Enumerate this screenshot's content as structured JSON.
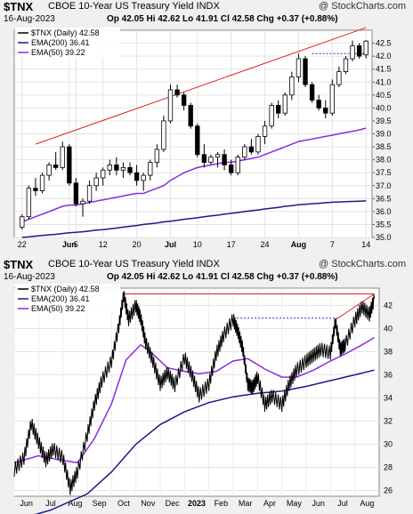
{
  "charts": [
    {
      "symbol": "$TNX",
      "name": "CBOE 10-Year US Treasury Yield",
      "exchange": "INDX",
      "watermark": "@ StockCharts.com",
      "date": "16-Aug-2023",
      "quote": "Op 42.05  Hi 42.62  Lo 41.91  Cl 42.58  Chg +0.37 (+0.88%)",
      "legend": [
        "$TNX (Daily) 42.58",
        "EMA(200) 36.41",
        "EMA(50) 39.22"
      ]
    },
    {
      "symbol": "$TNX",
      "name": "CBOE 10-Year US Treasury Yield",
      "exchange": "INDX",
      "watermark": "@ StockCharts.com",
      "date": "16-Aug-2023",
      "quote": "Op 42.05  Hi 42.62  Lo 41.91  Cl 42.58  Chg +0.37 (+0.88%)",
      "legend": [
        "$TNX (Daily) 42.58",
        "EMA(200) 36.41",
        "EMA(50) 39.22"
      ]
    }
  ],
  "colors": {
    "up": "#ffffff",
    "down": "#000000",
    "ema200": "#1a1a8c",
    "ema50": "#8a2be2",
    "trend": "#e02020",
    "support": "#3030c0",
    "bg": "#ffffff"
  },
  "chart_data": [
    {
      "type": "candlestick",
      "period": "daily",
      "ylim": [
        35.0,
        43.0
      ],
      "yticks": [
        35.0,
        35.5,
        36.0,
        36.5,
        37.0,
        37.5,
        38.0,
        38.5,
        39.0,
        39.5,
        40.0,
        40.5,
        41.0,
        41.5,
        42.0,
        42.5
      ],
      "xlabels": [
        "22",
        "Jun",
        "5",
        "12",
        "20",
        "Jul",
        "10",
        "17",
        "24",
        "Aug",
        "7",
        "14"
      ],
      "xlabel_index": [
        0,
        7,
        8,
        12,
        17,
        22,
        26,
        31,
        36,
        41,
        46,
        51
      ],
      "candles": [
        [
          35.4,
          35.9,
          35.3,
          35.8
        ],
        [
          35.8,
          37.0,
          35.7,
          36.9
        ],
        [
          36.9,
          37.3,
          36.6,
          36.8
        ],
        [
          36.8,
          37.5,
          36.7,
          37.4
        ],
        [
          37.4,
          37.9,
          37.2,
          37.8
        ],
        [
          37.8,
          38.3,
          37.6,
          37.7
        ],
        [
          37.7,
          38.7,
          37.6,
          38.5
        ],
        [
          38.5,
          38.6,
          37.0,
          37.1
        ],
        [
          37.1,
          37.3,
          36.2,
          36.3
        ],
        [
          36.3,
          36.5,
          35.8,
          36.4
        ],
        [
          36.4,
          37.2,
          36.3,
          37.0
        ],
        [
          37.0,
          37.5,
          36.8,
          37.3
        ],
        [
          37.3,
          37.7,
          37.0,
          37.6
        ],
        [
          37.6,
          38.0,
          37.4,
          37.8
        ],
        [
          37.8,
          38.1,
          37.4,
          37.6
        ],
        [
          37.6,
          37.9,
          37.3,
          37.7
        ],
        [
          37.7,
          37.9,
          37.4,
          37.5
        ],
        [
          37.5,
          37.8,
          37.0,
          37.2
        ],
        [
          37.2,
          37.5,
          36.8,
          37.4
        ],
        [
          37.4,
          38.0,
          37.2,
          37.9
        ],
        [
          37.9,
          38.6,
          37.7,
          38.4
        ],
        [
          38.4,
          39.7,
          38.3,
          39.5
        ],
        [
          39.5,
          40.9,
          39.4,
          40.7
        ],
        [
          40.7,
          40.9,
          40.4,
          40.5
        ],
        [
          40.5,
          40.6,
          39.9,
          40.1
        ],
        [
          40.1,
          40.2,
          39.2,
          39.3
        ],
        [
          39.3,
          39.4,
          38.1,
          38.2
        ],
        [
          38.2,
          38.6,
          37.7,
          37.9
        ],
        [
          37.9,
          38.2,
          37.8,
          38.1
        ],
        [
          38.1,
          38.3,
          37.7,
          38.2
        ],
        [
          38.2,
          38.4,
          37.6,
          37.8
        ],
        [
          37.8,
          38.0,
          37.4,
          37.5
        ],
        [
          37.5,
          38.2,
          37.4,
          38.1
        ],
        [
          38.1,
          38.6,
          38.0,
          38.5
        ],
        [
          38.5,
          38.8,
          38.2,
          38.3
        ],
        [
          38.3,
          39.0,
          38.2,
          38.9
        ],
        [
          38.9,
          39.5,
          38.6,
          39.3
        ],
        [
          39.3,
          40.2,
          39.2,
          40.1
        ],
        [
          40.1,
          40.3,
          39.6,
          39.8
        ],
        [
          39.8,
          40.6,
          39.7,
          40.5
        ],
        [
          40.5,
          41.4,
          40.3,
          41.2
        ],
        [
          41.2,
          42.1,
          41.0,
          41.9
        ],
        [
          41.9,
          42.0,
          40.8,
          40.9
        ],
        [
          40.9,
          41.0,
          40.2,
          40.3
        ],
        [
          40.3,
          40.5,
          39.9,
          40.0
        ],
        [
          40.0,
          40.3,
          39.6,
          39.8
        ],
        [
          39.8,
          41.1,
          39.7,
          40.9
        ],
        [
          40.9,
          41.6,
          40.8,
          41.4
        ],
        [
          41.4,
          42.0,
          41.3,
          41.9
        ],
        [
          41.9,
          42.6,
          41.8,
          42.4
        ],
        [
          42.4,
          42.5,
          41.9,
          42.0
        ],
        [
          42.05,
          42.62,
          41.91,
          42.58
        ]
      ],
      "ema50": [
        35.6,
        35.7,
        35.8,
        35.9,
        36.0,
        36.1,
        36.2,
        36.25,
        36.25,
        36.3,
        36.35,
        36.4,
        36.45,
        36.5,
        36.55,
        36.6,
        36.65,
        36.7,
        36.7,
        36.8,
        36.9,
        37.0,
        37.2,
        37.35,
        37.5,
        37.6,
        37.7,
        37.75,
        37.8,
        37.85,
        37.9,
        37.9,
        37.95,
        38.0,
        38.05,
        38.1,
        38.2,
        38.3,
        38.4,
        38.5,
        38.6,
        38.7,
        38.75,
        38.8,
        38.85,
        38.9,
        38.95,
        39.0,
        39.05,
        39.1,
        39.15,
        39.22
      ],
      "ema200": [
        35.0,
        35.02,
        35.05,
        35.08,
        35.1,
        35.12,
        35.15,
        35.18,
        35.2,
        35.22,
        35.25,
        35.28,
        35.3,
        35.33,
        35.36,
        35.4,
        35.43,
        35.46,
        35.5,
        35.53,
        35.56,
        35.6,
        35.63,
        35.66,
        35.7,
        35.73,
        35.76,
        35.8,
        35.83,
        35.86,
        35.9,
        35.93,
        35.96,
        36.0,
        36.03,
        36.06,
        36.1,
        36.13,
        36.16,
        36.2,
        36.23,
        36.26,
        36.28,
        36.3,
        36.32,
        36.34,
        36.36,
        36.37,
        36.38,
        36.39,
        36.4,
        36.41
      ],
      "trendline": [
        [
          2,
          38.6
        ],
        [
          51,
          43.1
        ]
      ],
      "support": [
        [
          43,
          42.1
        ],
        [
          51,
          42.1
        ]
      ]
    },
    {
      "type": "line",
      "period": "daily",
      "ylim": [
        25.5,
        43.5
      ],
      "yticks": [
        26,
        28,
        30,
        32,
        34,
        36,
        38,
        40,
        42
      ],
      "xlabels": [
        "Jun",
        "Jul",
        "Aug",
        "Sep",
        "Oct",
        "Nov",
        "Dec",
        "2023",
        "Feb",
        "Mar",
        "Apr",
        "May",
        "Jun",
        "Jul",
        "Aug"
      ],
      "xlabel_pos": [
        0.5,
        1.5,
        2.5,
        3.5,
        4.5,
        5.5,
        6.5,
        7.5,
        8.5,
        9.5,
        10.5,
        11.5,
        12.5,
        13.5,
        14.5
      ],
      "prices_monthly_points": [
        [
          0.0,
          27.8
        ],
        [
          0.4,
          28.8
        ],
        [
          0.7,
          31.8
        ],
        [
          1.0,
          30.2
        ],
        [
          1.3,
          28.6
        ],
        [
          1.6,
          29.6
        ],
        [
          2.0,
          28.8
        ],
        [
          2.3,
          26.2
        ],
        [
          2.6,
          27.6
        ],
        [
          3.0,
          30.8
        ],
        [
          3.3,
          33.5
        ],
        [
          3.6,
          35.5
        ],
        [
          4.0,
          37.2
        ],
        [
          4.3,
          40.2
        ],
        [
          4.5,
          42.9
        ],
        [
          4.7,
          40.8
        ],
        [
          5.0,
          42.0
        ],
        [
          5.2,
          40.9
        ],
        [
          5.4,
          38.8
        ],
        [
          5.7,
          37.2
        ],
        [
          6.0,
          35.2
        ],
        [
          6.3,
          36.2
        ],
        [
          6.6,
          35.1
        ],
        [
          7.0,
          37.5
        ],
        [
          7.3,
          36.0
        ],
        [
          7.6,
          34.2
        ],
        [
          8.0,
          35.2
        ],
        [
          8.3,
          37.8
        ],
        [
          8.6,
          39.4
        ],
        [
          9.0,
          40.8
        ],
        [
          9.2,
          39.7
        ],
        [
          9.4,
          38.2
        ],
        [
          9.6,
          35.2
        ],
        [
          9.8,
          34.9
        ],
        [
          10.0,
          35.8
        ],
        [
          10.3,
          33.4
        ],
        [
          10.6,
          34.2
        ],
        [
          11.0,
          33.4
        ],
        [
          11.3,
          35.2
        ],
        [
          11.6,
          36.4
        ],
        [
          12.0,
          37.2
        ],
        [
          12.3,
          37.7
        ],
        [
          12.6,
          38.2
        ],
        [
          13.0,
          37.9
        ],
        [
          13.2,
          40.6
        ],
        [
          13.4,
          38.2
        ],
        [
          13.6,
          38.6
        ],
        [
          14.0,
          40.7
        ],
        [
          14.3,
          41.9
        ],
        [
          14.6,
          41.2
        ],
        [
          14.8,
          42.58
        ]
      ],
      "ema50_points": [
        [
          0.0,
          28.4
        ],
        [
          1.0,
          29.0
        ],
        [
          2.0,
          28.6
        ],
        [
          2.6,
          28.4
        ],
        [
          3.3,
          30.5
        ],
        [
          4.0,
          33.5
        ],
        [
          4.6,
          37.3
        ],
        [
          5.2,
          38.6
        ],
        [
          5.6,
          38.0
        ],
        [
          6.3,
          36.6
        ],
        [
          7.0,
          36.3
        ],
        [
          7.6,
          36.1
        ],
        [
          8.3,
          36.3
        ],
        [
          9.0,
          37.2
        ],
        [
          9.6,
          37.4
        ],
        [
          10.3,
          36.5
        ],
        [
          11.0,
          35.8
        ],
        [
          11.6,
          35.8
        ],
        [
          12.3,
          36.4
        ],
        [
          13.0,
          37.2
        ],
        [
          13.6,
          37.8
        ],
        [
          14.3,
          38.6
        ],
        [
          14.8,
          39.22
        ]
      ],
      "ema200_points": [
        [
          0.0,
          23.4
        ],
        [
          1.5,
          24.3
        ],
        [
          3.0,
          25.7
        ],
        [
          4.0,
          27.6
        ],
        [
          5.0,
          30.0
        ],
        [
          6.0,
          31.7
        ],
        [
          7.0,
          32.8
        ],
        [
          8.0,
          33.6
        ],
        [
          9.0,
          34.1
        ],
        [
          10.0,
          34.4
        ],
        [
          11.0,
          34.6
        ],
        [
          12.0,
          35.0
        ],
        [
          13.0,
          35.5
        ],
        [
          14.0,
          36.0
        ],
        [
          14.8,
          36.41
        ]
      ],
      "resistance": [
        [
          4.55,
          43.0
        ],
        [
          14.8,
          43.0
        ]
      ],
      "support": [
        [
          9.0,
          40.9
        ],
        [
          13.3,
          40.9
        ]
      ],
      "trendline": [
        [
          13.3,
          40.9
        ],
        [
          14.8,
          43.0
        ]
      ]
    }
  ]
}
